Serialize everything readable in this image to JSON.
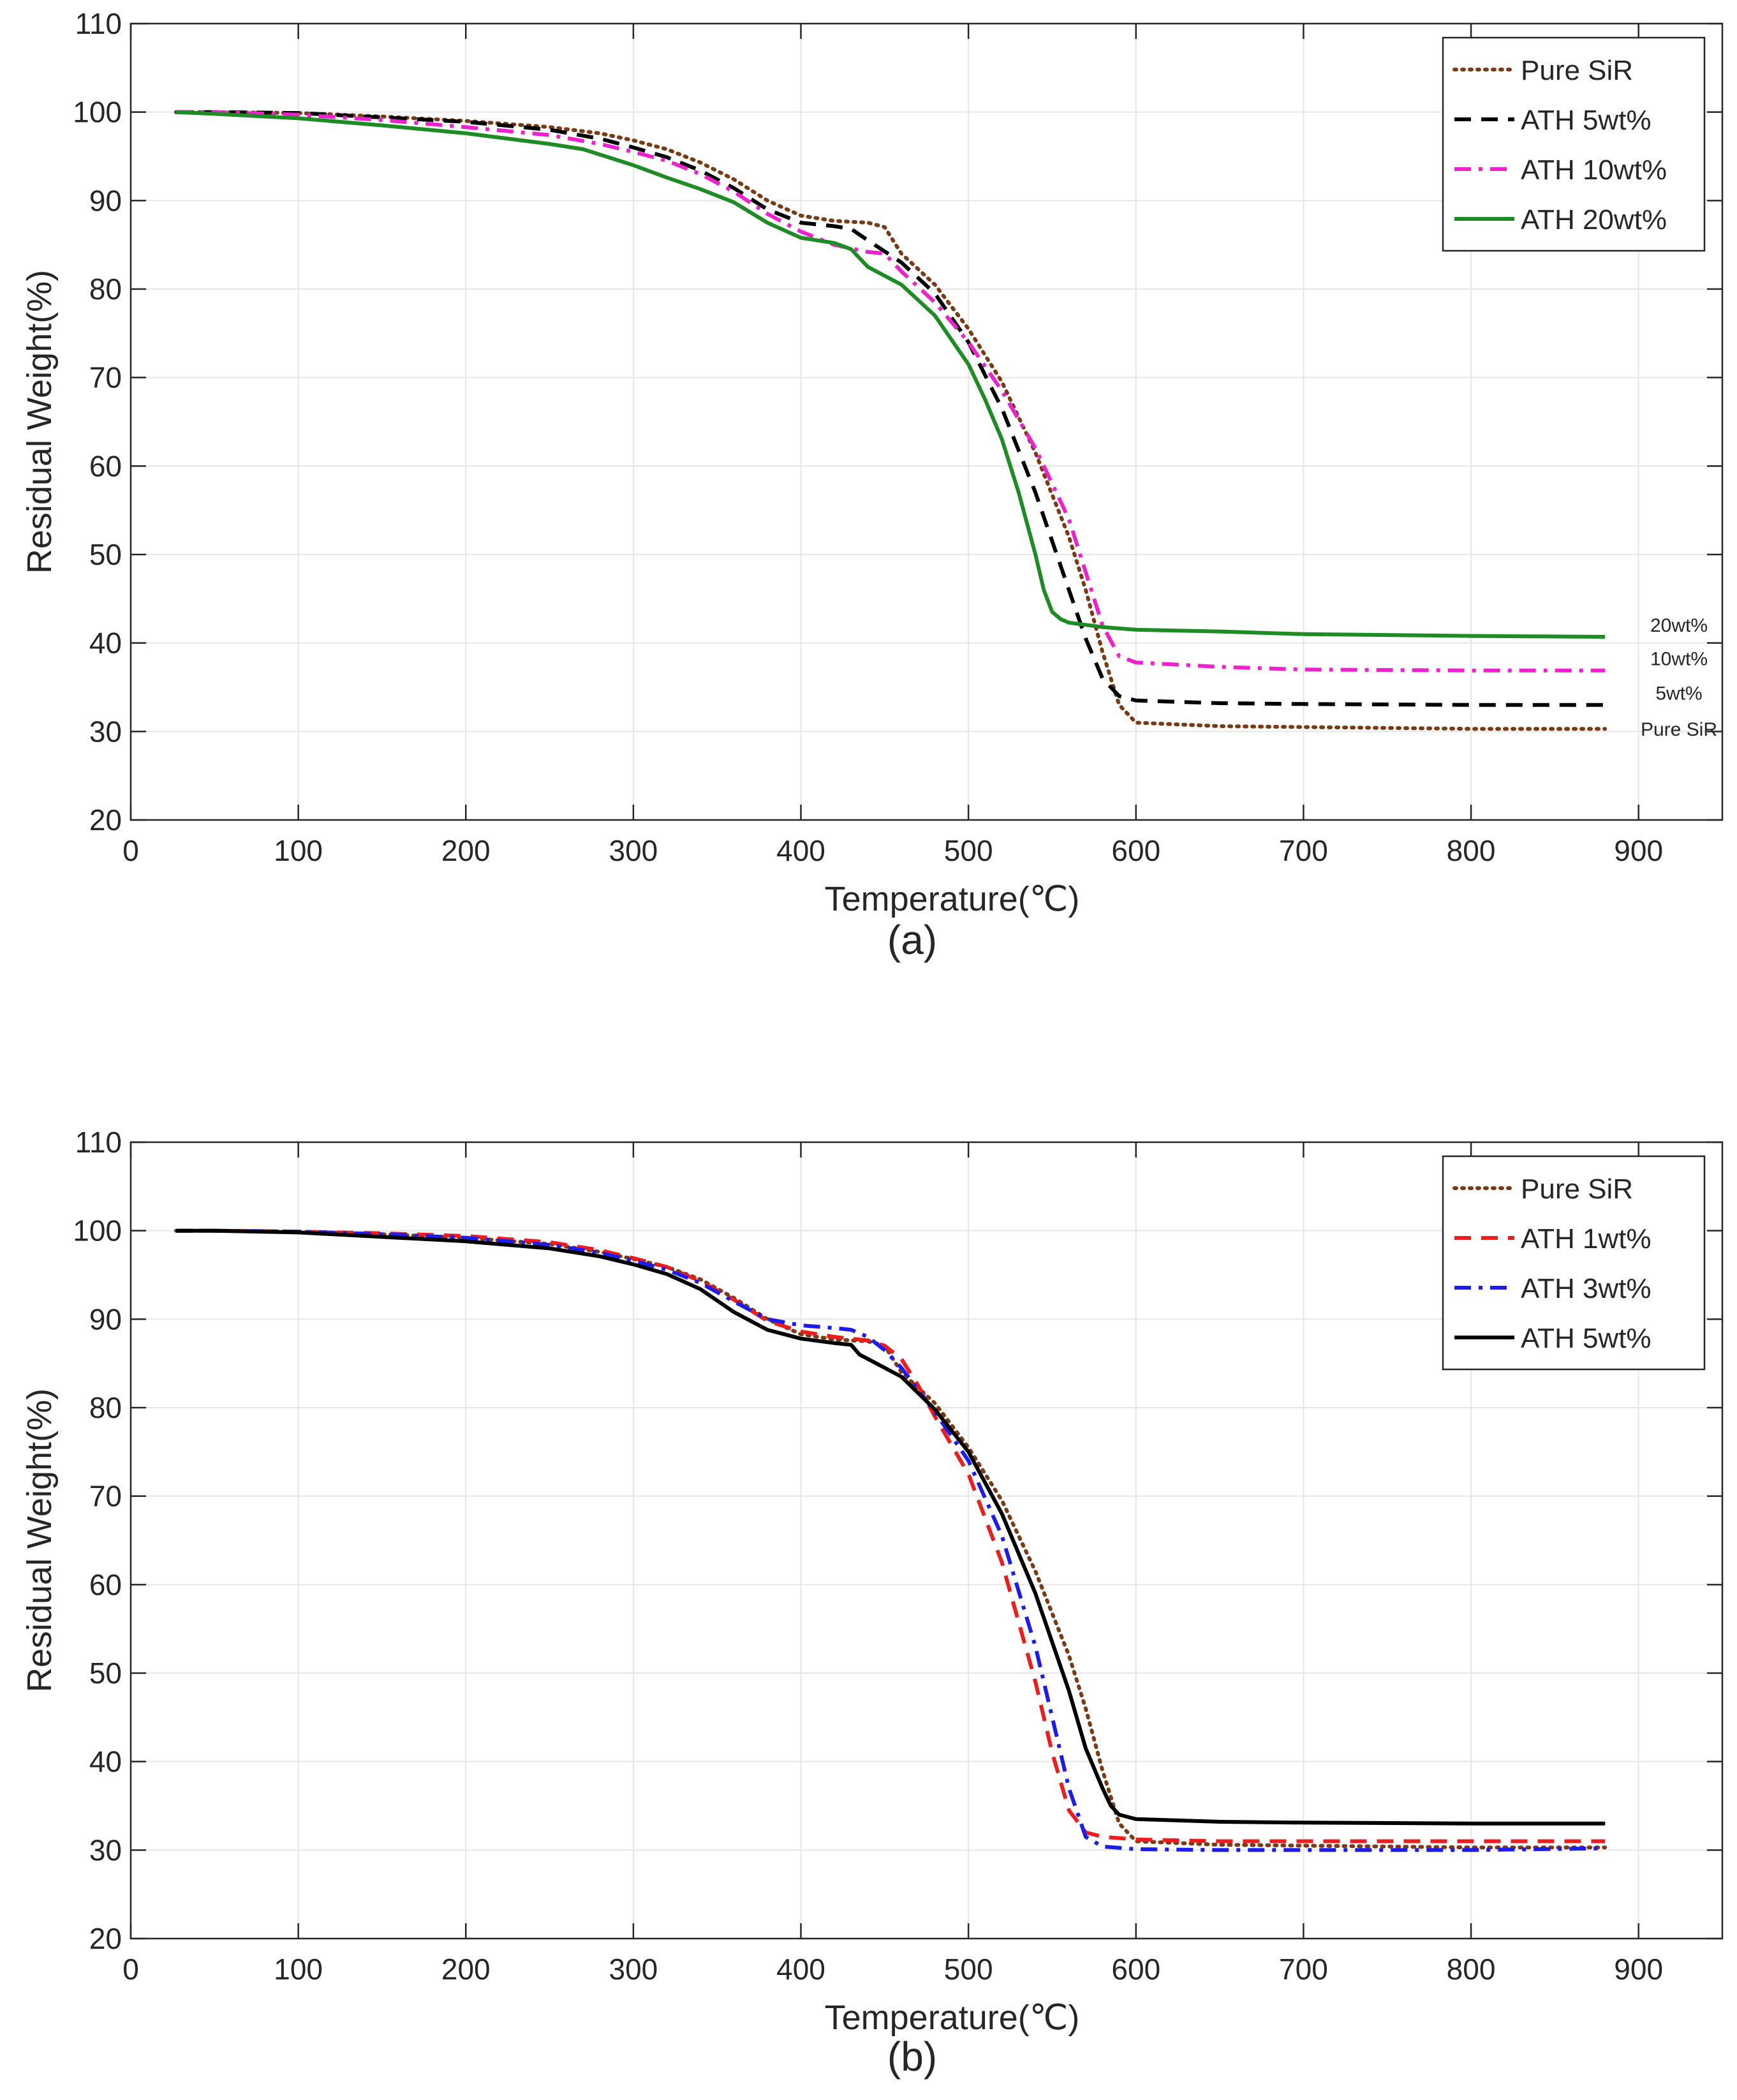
{
  "chart_data": [
    {
      "type": "line",
      "panel_label": "(a)",
      "xlabel": "Temperature(℃)",
      "ylabel": "Residual Weight(%)",
      "xlim": [
        0,
        950
      ],
      "ylim": [
        20,
        110
      ],
      "xticks": [
        0,
        100,
        200,
        300,
        400,
        500,
        600,
        700,
        800,
        900
      ],
      "yticks": [
        20,
        30,
        40,
        50,
        60,
        70,
        80,
        90,
        100,
        110
      ],
      "grid": true,
      "legend_position": "top-right",
      "series": [
        {
          "name": "Pure SiR",
          "legend_label": "Pure SiR",
          "color": "#7a3a14",
          "dash": "dot",
          "x": [
            27,
            50,
            100,
            150,
            200,
            250,
            280,
            300,
            320,
            340,
            360,
            380,
            400,
            420,
            440,
            450,
            460,
            480,
            500,
            520,
            540,
            560,
            570,
            580,
            590,
            600,
            650,
            700,
            800,
            880
          ],
          "y": [
            100,
            100,
            99.9,
            99.5,
            99.0,
            98.3,
            97.6,
            96.8,
            95.8,
            94.3,
            92.4,
            90.0,
            88.3,
            87.7,
            87.5,
            87.0,
            84.0,
            80.5,
            75.5,
            69.5,
            61.5,
            52.0,
            46.0,
            39.0,
            33.0,
            31.0,
            30.6,
            30.5,
            30.3,
            30.3
          ],
          "end_label": "Pure SiR",
          "end_value": 30.3
        },
        {
          "name": "ATH 5wt%",
          "legend_label": "ATH   5wt%",
          "color": "#000000",
          "dash": "dash",
          "x": [
            27,
            50,
            100,
            150,
            200,
            250,
            280,
            300,
            320,
            340,
            360,
            380,
            400,
            420,
            430,
            440,
            460,
            480,
            500,
            520,
            540,
            560,
            570,
            580,
            590,
            600,
            650,
            700,
            800,
            880
          ],
          "y": [
            100,
            100,
            99.9,
            99.4,
            98.9,
            98.0,
            97.0,
            96.0,
            94.9,
            93.4,
            91.4,
            89.0,
            87.5,
            87.1,
            86.8,
            85.5,
            83.0,
            79.5,
            74.0,
            66.5,
            57.0,
            46.0,
            40.5,
            36.0,
            34.0,
            33.5,
            33.2,
            33.1,
            33.0,
            33.0
          ],
          "end_label": "5wt%",
          "end_value": 33.0
        },
        {
          "name": "ATH 10wt%",
          "legend_label": "ATH 10wt%",
          "color": "#ee22cc",
          "dash": "dashdot",
          "x": [
            27,
            50,
            100,
            150,
            200,
            250,
            280,
            300,
            320,
            340,
            360,
            380,
            400,
            420,
            440,
            450,
            460,
            480,
            500,
            520,
            540,
            560,
            570,
            580,
            590,
            600,
            650,
            700,
            800,
            880
          ],
          "y": [
            100,
            100,
            99.7,
            99.1,
            98.3,
            97.4,
            96.4,
            95.5,
            94.5,
            93.0,
            91.0,
            88.5,
            86.5,
            85.0,
            84.2,
            84.0,
            82.0,
            78.5,
            74.0,
            68.5,
            62.0,
            54.0,
            48.0,
            42.0,
            38.5,
            37.8,
            37.3,
            37.0,
            36.9,
            36.9
          ],
          "end_label": "10wt%",
          "end_value": 36.9
        },
        {
          "name": "ATH 20wt%",
          "legend_label": "ATH 20wt%",
          "color": "#1e8c24",
          "dash": "solid",
          "x": [
            27,
            50,
            100,
            150,
            200,
            250,
            270,
            300,
            320,
            340,
            360,
            380,
            400,
            420,
            430,
            435,
            440,
            460,
            480,
            500,
            510,
            520,
            530,
            540,
            545,
            550,
            555,
            560,
            580,
            600,
            650,
            700,
            800,
            880
          ],
          "y": [
            100,
            99.8,
            99.3,
            98.5,
            97.6,
            96.4,
            95.8,
            94.0,
            92.6,
            91.3,
            89.8,
            87.5,
            85.8,
            85.2,
            84.5,
            83.5,
            82.5,
            80.5,
            77.0,
            71.5,
            67.5,
            63.0,
            57.0,
            50.0,
            46.0,
            43.5,
            42.7,
            42.3,
            41.8,
            41.5,
            41.3,
            41.0,
            40.8,
            40.7
          ],
          "end_label": "20wt%",
          "end_value": 40.7
        }
      ]
    },
    {
      "type": "line",
      "panel_label": "(b)",
      "xlabel": "Temperature(℃)",
      "ylabel": "Residual Weight(%)",
      "xlim": [
        0,
        950
      ],
      "ylim": [
        20,
        110
      ],
      "xticks": [
        0,
        100,
        200,
        300,
        400,
        500,
        600,
        700,
        800,
        900
      ],
      "yticks": [
        20,
        30,
        40,
        50,
        60,
        70,
        80,
        90,
        100,
        110
      ],
      "grid": true,
      "legend_position": "top-right",
      "series": [
        {
          "name": "Pure SiR",
          "legend_label": "Pure SiR",
          "color": "#7a3a14",
          "dash": "dot",
          "x": [
            27,
            50,
            100,
            150,
            200,
            250,
            280,
            300,
            320,
            340,
            360,
            380,
            400,
            420,
            440,
            450,
            460,
            480,
            500,
            520,
            540,
            560,
            570,
            580,
            590,
            600,
            650,
            700,
            800,
            880
          ],
          "y": [
            100,
            100,
            99.9,
            99.6,
            99.2,
            98.5,
            97.6,
            96.8,
            95.9,
            94.5,
            92.4,
            90.0,
            88.3,
            87.7,
            87.5,
            87.0,
            84.0,
            80.5,
            75.5,
            69.5,
            61.5,
            52.0,
            46.0,
            39.0,
            33.0,
            31.0,
            30.6,
            30.5,
            30.3,
            30.3
          ]
        },
        {
          "name": "ATH 1wt%",
          "legend_label": "ATH   1wt%",
          "color": "#ee1c1c",
          "dash": "dash",
          "x": [
            27,
            50,
            100,
            150,
            200,
            250,
            280,
            300,
            320,
            340,
            360,
            380,
            400,
            420,
            440,
            450,
            460,
            470,
            480,
            500,
            520,
            540,
            550,
            560,
            570,
            580,
            600,
            650,
            700,
            800,
            880
          ],
          "y": [
            100,
            100,
            99.9,
            99.7,
            99.4,
            98.7,
            97.8,
            96.9,
            95.9,
            94.3,
            92.2,
            89.8,
            88.6,
            88.0,
            87.6,
            87.0,
            85.5,
            82.5,
            79.0,
            72.5,
            62.5,
            49.0,
            41.0,
            34.5,
            32.0,
            31.5,
            31.2,
            31.0,
            31.0,
            31.0,
            31.0
          ]
        },
        {
          "name": "ATH 3wt%",
          "legend_label": "ATH   3wt%",
          "color": "#1c1cee",
          "dash": "dashdot",
          "x": [
            27,
            50,
            100,
            150,
            200,
            250,
            280,
            300,
            320,
            340,
            360,
            380,
            400,
            420,
            430,
            440,
            450,
            460,
            480,
            500,
            520,
            540,
            550,
            560,
            570,
            580,
            600,
            650,
            700,
            800,
            880
          ],
          "y": [
            100,
            100,
            99.9,
            99.6,
            99.2,
            98.4,
            97.5,
            96.6,
            95.6,
            94.1,
            92.0,
            90.0,
            89.3,
            89.0,
            88.8,
            88.0,
            86.5,
            84.5,
            79.5,
            74.0,
            65.5,
            53.0,
            45.0,
            37.0,
            31.5,
            30.4,
            30.1,
            30.0,
            30.0,
            30.0,
            30.2
          ]
        },
        {
          "name": "ATH 5wt%",
          "legend_label": "ATH   5wt%",
          "color": "#000000",
          "dash": "solid",
          "x": [
            27,
            50,
            100,
            150,
            200,
            250,
            280,
            300,
            320,
            340,
            360,
            380,
            400,
            420,
            430,
            435,
            440,
            460,
            480,
            500,
            520,
            540,
            560,
            570,
            580,
            585,
            590,
            600,
            650,
            700,
            800,
            880
          ],
          "y": [
            100,
            100,
            99.8,
            99.3,
            98.8,
            98.0,
            97.1,
            96.2,
            95.1,
            93.4,
            90.8,
            88.8,
            87.8,
            87.3,
            87.1,
            86.0,
            85.5,
            83.5,
            79.8,
            75.0,
            68.0,
            59.0,
            48.0,
            41.5,
            37.0,
            35.0,
            34.0,
            33.5,
            33.2,
            33.1,
            33.0,
            33.0
          ]
        }
      ]
    }
  ]
}
